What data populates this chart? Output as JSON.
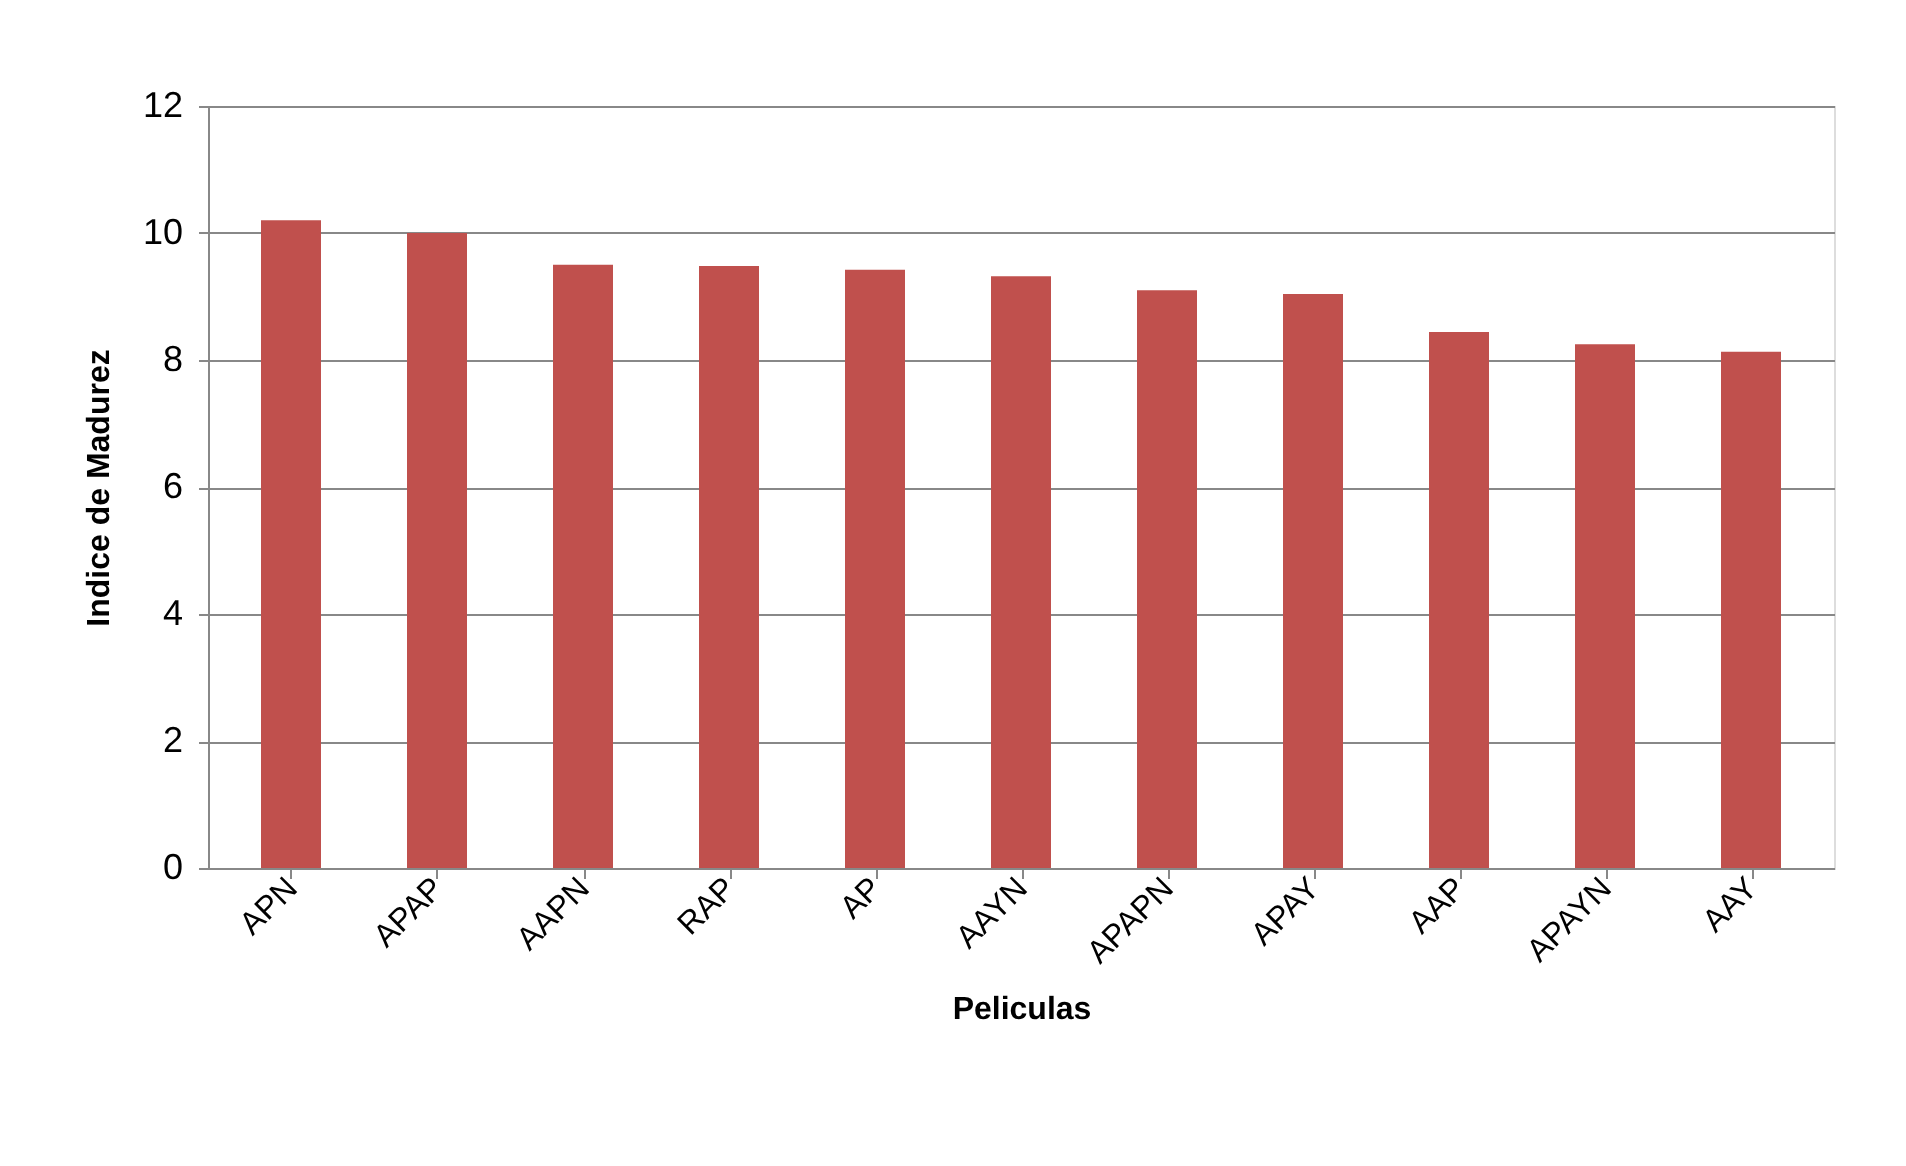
{
  "chart_data": {
    "type": "bar",
    "xlabel": "Peliculas",
    "ylabel": "Indice de Madurez",
    "categories": [
      "APN",
      "APAP",
      "AAPN",
      "RAP",
      "AP",
      "AAYN",
      "APAPN",
      "APAY",
      "AAP",
      "APAYN",
      "AAY"
    ],
    "values": [
      10.2,
      10.0,
      9.5,
      9.48,
      9.42,
      9.32,
      9.1,
      9.04,
      8.44,
      8.25,
      8.13
    ],
    "color": "#c0504d",
    "ylim": [
      0,
      12
    ],
    "yticks": [
      0,
      2,
      4,
      6,
      8,
      10,
      12
    ],
    "grid": "y"
  }
}
